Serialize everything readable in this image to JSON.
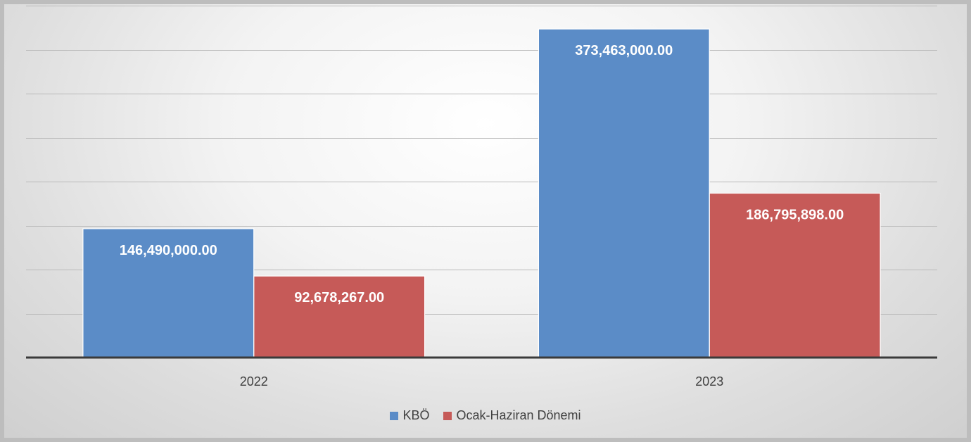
{
  "chart_data": {
    "type": "bar",
    "categories": [
      "2022",
      "2023"
    ],
    "series": [
      {
        "name": "KBÖ",
        "color": "#5b8cc7",
        "values": [
          146490000,
          373463000
        ],
        "labels": [
          "146,490,000.00",
          "373,463,000.00"
        ]
      },
      {
        "name": "Ocak-Haziran Dönemi",
        "color": "#c65a58",
        "values": [
          92678267,
          186795898
        ],
        "labels": [
          "92,678,267.00",
          "186,795,898.00"
        ]
      }
    ],
    "title": "",
    "xlabel": "",
    "ylabel": "",
    "ylim": [
      0,
      400000000
    ],
    "y_gridline_step": 50000000,
    "grid": true,
    "legend_position": "bottom",
    "y_axis_labels_visible": false
  }
}
